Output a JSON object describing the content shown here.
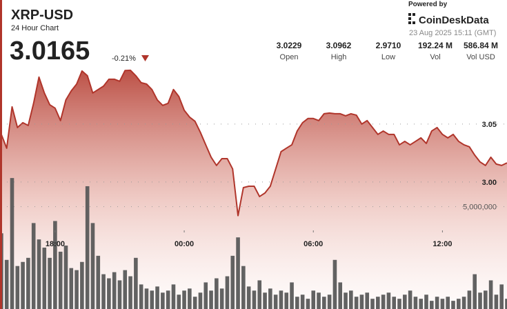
{
  "header": {
    "title": "XRP-USD",
    "subtitle": "24 Hour Chart",
    "price": 3.0165,
    "change": "-0.21%",
    "powered_by": "Powered by",
    "brand": "CoinDeskData",
    "timestamp": "23 Aug 2025 15:11 (GMT)",
    "stats": [
      {
        "value": "3.0229",
        "label": "Open"
      },
      {
        "value": "3.0962",
        "label": "High"
      },
      {
        "value": "2.9710",
        "label": "Low"
      },
      {
        "value": "192.24 M",
        "label": "Vol"
      },
      {
        "value": "586.84 M",
        "label": "Vol USD"
      }
    ]
  },
  "chart_data": {
    "type": "line",
    "categories": [
      null,
      null,
      null,
      null,
      null,
      null,
      null,
      null,
      null,
      null,
      "18:00",
      null,
      null,
      null,
      null,
      null,
      null,
      null,
      null,
      null,
      null,
      null,
      null,
      null,
      null,
      null,
      null,
      null,
      null,
      null,
      null,
      null,
      null,
      null,
      "00:00",
      null,
      null,
      null,
      null,
      null,
      null,
      null,
      null,
      null,
      null,
      null,
      null,
      null,
      null,
      null,
      null,
      null,
      null,
      null,
      null,
      null,
      null,
      null,
      "06:00",
      null,
      null,
      null,
      null,
      null,
      null,
      null,
      null,
      null,
      null,
      null,
      null,
      null,
      null,
      null,
      null,
      null,
      null,
      null,
      null,
      null,
      null,
      null,
      "12:00",
      null,
      null,
      null,
      null,
      null,
      null,
      null,
      null,
      null,
      null,
      null,
      null
    ],
    "series": [
      {
        "color": "#b0352b",
        "values": [
          3.0411,
          3.0292,
          3.0649,
          3.047,
          3.0512,
          3.0488,
          3.0679,
          3.0905,
          3.0768,
          3.0667,
          3.0637,
          3.053,
          3.0708,
          3.0786,
          3.0845,
          3.0958,
          3.0917,
          3.0768,
          3.0798,
          3.0827,
          3.0887,
          3.0887,
          3.0869,
          3.0962,
          3.0964,
          3.0917,
          3.0857,
          3.0845,
          3.0798,
          3.0708,
          3.0661,
          3.0679,
          3.0798,
          3.0738,
          3.0619,
          3.056,
          3.0524,
          3.0429,
          3.0321,
          3.0214,
          3.0143,
          3.0202,
          3.0202,
          3.0113,
          2.971,
          2.9952,
          2.9964,
          2.9964,
          2.9875,
          2.9905,
          2.9964,
          3.0113,
          3.0262,
          3.0292,
          3.0321,
          3.044,
          3.0512,
          3.0548,
          3.0548,
          3.053,
          3.0589,
          3.0595,
          3.0589,
          3.0589,
          3.0571,
          3.0589,
          3.0577,
          3.05,
          3.053,
          3.047,
          3.0411,
          3.044,
          3.0411,
          3.0411,
          3.0321,
          3.0351,
          3.0321,
          3.0351,
          3.0381,
          3.0333,
          3.044,
          3.047,
          3.0411,
          3.0381,
          3.0411,
          3.0351,
          3.0321,
          3.0304,
          3.0232,
          3.0173,
          3.0143,
          3.0214,
          3.0155,
          3.0143,
          3.0165
        ]
      },
      {
        "type": "bar",
        "axis": "y2",
        "color": "#5a5a5a",
        "values": [
          3700000,
          2400000,
          6400000,
          2100000,
          2300000,
          2500000,
          4200000,
          3400000,
          3000000,
          2500000,
          4300000,
          2800000,
          3100000,
          2000000,
          1900000,
          2300000,
          6000000,
          4200000,
          2600000,
          1700000,
          1500000,
          1800000,
          1400000,
          1900000,
          1600000,
          2500000,
          1200000,
          1000000,
          900000,
          1100000,
          800000,
          900000,
          1200000,
          700000,
          900000,
          1000000,
          600000,
          800000,
          1300000,
          900000,
          1500000,
          1000000,
          1600000,
          2600000,
          3500000,
          2100000,
          1100000,
          900000,
          1400000,
          800000,
          1000000,
          700000,
          900000,
          800000,
          1300000,
          600000,
          700000,
          500000,
          900000,
          800000,
          600000,
          700000,
          2400000,
          1300000,
          800000,
          900000,
          600000,
          700000,
          800000,
          500000,
          600000,
          700000,
          800000,
          600000,
          500000,
          700000,
          900000,
          600000,
          500000,
          700000,
          400000,
          600000,
          500000,
          600000,
          400000,
          500000,
          600000,
          900000,
          1700000,
          800000,
          900000,
          1400000,
          700000,
          1200000,
          500000
        ]
      }
    ],
    "ylim": [
      2.8905,
      3.157
    ],
    "yticks": [
      3.05,
      {
        "value": 3,
        "label": "3.00"
      }
    ],
    "y2lim": [
      0,
      15100000
    ],
    "y2ticks": [
      {
        "value": 5000000,
        "label": "5,000,000"
      }
    ],
    "grid": true
  }
}
